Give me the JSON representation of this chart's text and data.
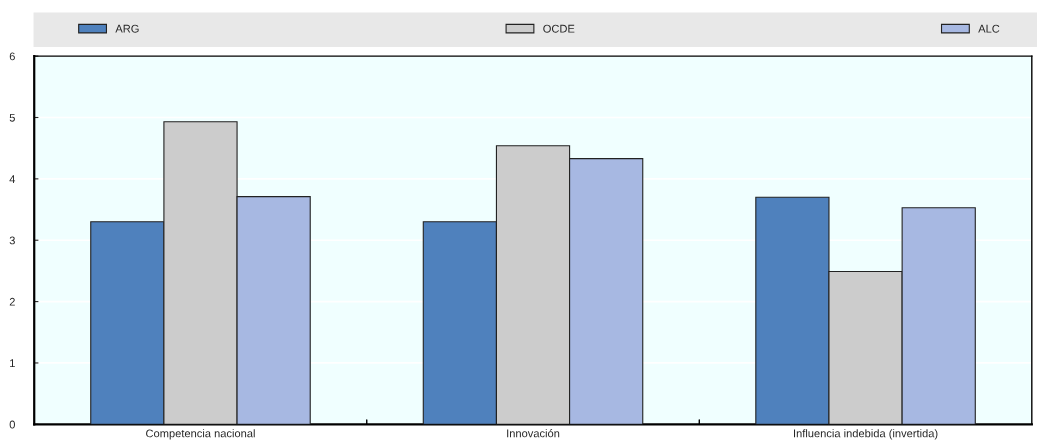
{
  "chart_data": {
    "type": "bar",
    "categories": [
      "Competencia nacional",
      "Innovación",
      "Influencia indebida (invertida)"
    ],
    "series": [
      {
        "name": "ARG",
        "color": "#4f81bd",
        "values": [
          3.3,
          3.3,
          3.7
        ]
      },
      {
        "name": "OCDE",
        "color": "#cccccc",
        "values": [
          4.93,
          4.54,
          2.49
        ]
      },
      {
        "name": "ALC",
        "color": "#a7b8e2",
        "values": [
          3.71,
          4.33,
          3.53
        ]
      }
    ],
    "ylim": [
      0,
      6
    ],
    "yticks": [
      0,
      1,
      2,
      3,
      4,
      5,
      6
    ],
    "grid": "y",
    "legend": "top"
  }
}
